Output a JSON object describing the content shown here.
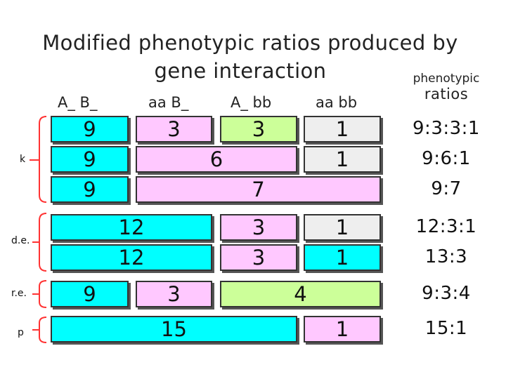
{
  "title": {
    "line1": "Modified phenotypic ratios produced by",
    "line2": "gene interaction"
  },
  "ratios_header": {
    "line1": "phenotypic",
    "line2": "ratios"
  },
  "columns": [
    "A_ B_",
    "aa B_",
    "A_ bb",
    "aa bb"
  ],
  "colors": {
    "cyan": "#00ffff",
    "pink": "#ffc8ff",
    "green": "#ccff99",
    "gray": "#eeeeee",
    "bracket": "#ff3333"
  },
  "rows": [
    {
      "cells": [
        "9",
        "3",
        "3",
        "1"
      ],
      "ratio": "9:3:3:1"
    },
    {
      "cells": [
        "9",
        "6",
        "1"
      ],
      "ratio": "9:6:1"
    },
    {
      "cells": [
        "9",
        "7"
      ],
      "ratio": "9:7"
    },
    {
      "cells": [
        "12",
        "3",
        "1"
      ],
      "ratio": "12:3:1"
    },
    {
      "cells": [
        "12",
        "3",
        "1"
      ],
      "ratio": "13:3"
    },
    {
      "cells": [
        "9",
        "3",
        "4"
      ],
      "ratio": "9:3:4"
    },
    {
      "cells": [
        "15",
        "1"
      ],
      "ratio": "15:1"
    }
  ],
  "groups": [
    "k",
    "d.e.",
    "r.e.",
    "p"
  ]
}
